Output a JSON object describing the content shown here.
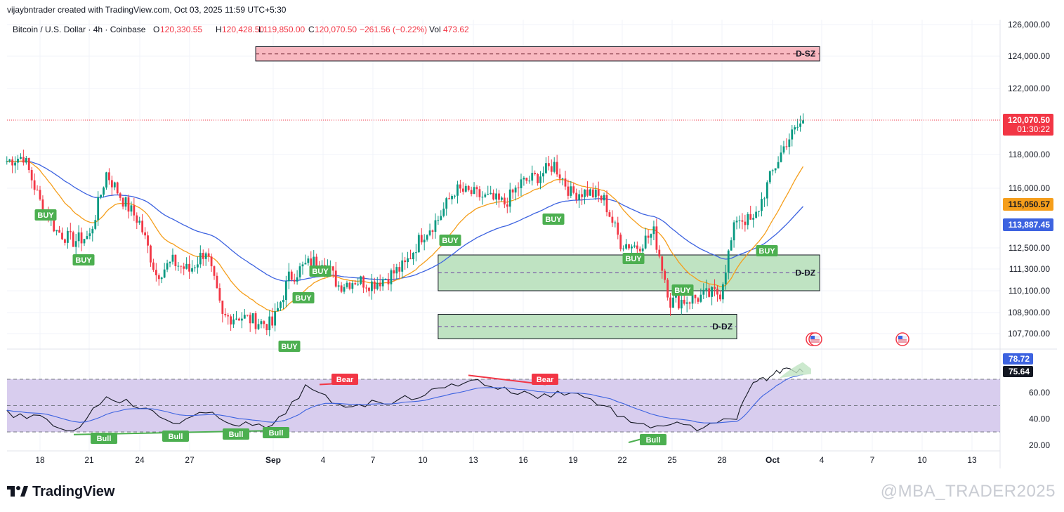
{
  "header": {
    "creator_line": "vijaybntrader created with TradingView.com, Oct 03, 2025 11:59 UTC+5:30"
  },
  "legend": {
    "symbol": "Bitcoin / U.S. Dollar · 4h · Coinbase",
    "open_label": "O",
    "open": "120,330.55",
    "high_label": "H",
    "high": "120,428.50",
    "low_label": "L",
    "low": "119,850.00",
    "close_label": "C",
    "close": "120,070.50",
    "change": "−261.56 (−0.22%)",
    "vol_label": "Vol",
    "vol": "473.62"
  },
  "colors": {
    "up": "#089981",
    "down": "#f23645",
    "ema_fast": "#f59e1b",
    "ema_slow": "#3d63e0",
    "supply_fill": "#f8b8c0",
    "demand_fill": "#bfe3c2",
    "rsi_band": "#d8cdee",
    "rsi_line": "#131722",
    "rsi_ma": "#3d63e0",
    "buy_tag": "#4caf50",
    "bear_tag": "#f23645"
  },
  "price_axis": {
    "ticks": [
      "126,000.00",
      "124,000.00",
      "122,000.00",
      "118,000.00",
      "116,000.00",
      "112,500.00",
      "111,300.00",
      "110,100.00",
      "108,900.00",
      "107,700.00"
    ],
    "last_price": "120,070.50",
    "countdown": "01:30:22",
    "ema_fast_value": "115,050.57",
    "ema_slow_value": "113,887.45"
  },
  "rsi_axis": {
    "ticks": [
      "60.00",
      "40.00",
      "20.00"
    ],
    "rsi_value": "75.64",
    "rsi_ma_value": "78.72"
  },
  "time_axis": [
    "18",
    "21",
    "24",
    "27",
    "Sep",
    "4",
    "7",
    "10",
    "13",
    "16",
    "19",
    "22",
    "25",
    "28",
    "Oct",
    "4",
    "7",
    "10",
    "13"
  ],
  "zones": [
    {
      "label": "D-SZ"
    },
    {
      "label": "D-DZ"
    },
    {
      "label": "D-DZ"
    }
  ],
  "signals": {
    "buy_label": "BUY",
    "bull_label": "Bull",
    "bear_label": "Bear"
  },
  "footer": {
    "brand": "TradingView",
    "watermark": "@MBA_TRADER2025"
  },
  "chart_data": {
    "type": "candlestick",
    "title": "Bitcoin / U.S. Dollar · 4h · Coinbase",
    "timeframe": "4h",
    "price_range": [
      106700,
      126600
    ],
    "x_labels": [
      "18",
      "21",
      "24",
      "27",
      "Sep",
      "4",
      "7",
      "10",
      "13",
      "16",
      "19",
      "22",
      "25",
      "28",
      "Oct",
      "4",
      "7",
      "10",
      "13"
    ],
    "close_path": [
      {
        "date": "Aug 16",
        "close": 117600
      },
      {
        "date": "Aug 17",
        "close": 117900
      },
      {
        "date": "Aug 18",
        "close": 115200
      },
      {
        "date": "Aug 19",
        "close": 113500
      },
      {
        "date": "Aug 20",
        "close": 112900
      },
      {
        "date": "Aug 21",
        "close": 113200
      },
      {
        "date": "Aug 22",
        "close": 116900
      },
      {
        "date": "Aug 23",
        "close": 115300
      },
      {
        "date": "Aug 24",
        "close": 114000
      },
      {
        "date": "Aug 25",
        "close": 111000
      },
      {
        "date": "Aug 26",
        "close": 111700
      },
      {
        "date": "Aug 27",
        "close": 111200
      },
      {
        "date": "Aug 28",
        "close": 112400
      },
      {
        "date": "Aug 29",
        "close": 108600
      },
      {
        "date": "Aug 30",
        "close": 108700
      },
      {
        "date": "Aug 31",
        "close": 108400
      },
      {
        "date": "Sep 1",
        "close": 108200
      },
      {
        "date": "Sep 2",
        "close": 110800
      },
      {
        "date": "Sep 3",
        "close": 111500
      },
      {
        "date": "Sep 4",
        "close": 111900
      },
      {
        "date": "Sep 5",
        "close": 110400
      },
      {
        "date": "Sep 6",
        "close": 110700
      },
      {
        "date": "Sep 7",
        "close": 110500
      },
      {
        "date": "Sep 8",
        "close": 110900
      },
      {
        "date": "Sep 9",
        "close": 111500
      },
      {
        "date": "Sep 10",
        "close": 113200
      },
      {
        "date": "Sep 11",
        "close": 114200
      },
      {
        "date": "Sep 12",
        "close": 115900
      },
      {
        "date": "Sep 13",
        "close": 115700
      },
      {
        "date": "Sep 14",
        "close": 115400
      },
      {
        "date": "Sep 15",
        "close": 115100
      },
      {
        "date": "Sep 16",
        "close": 116300
      },
      {
        "date": "Sep 17",
        "close": 116700
      },
      {
        "date": "Sep 18",
        "close": 117400
      },
      {
        "date": "Sep 19",
        "close": 115700
      },
      {
        "date": "Sep 20",
        "close": 115800
      },
      {
        "date": "Sep 21",
        "close": 115300
      },
      {
        "date": "Sep 22",
        "close": 112800
      },
      {
        "date": "Sep 23",
        "close": 112600
      },
      {
        "date": "Sep 24",
        "close": 113400
      },
      {
        "date": "Sep 25",
        "close": 109500
      },
      {
        "date": "Sep 26",
        "close": 109600
      },
      {
        "date": "Sep 27",
        "close": 109800
      },
      {
        "date": "Sep 28",
        "close": 110000
      },
      {
        "date": "Sep 29",
        "close": 114300
      },
      {
        "date": "Sep 30",
        "close": 114000
      },
      {
        "date": "Oct 1",
        "close": 116600
      },
      {
        "date": "Oct 2",
        "close": 118800
      },
      {
        "date": "Oct 3",
        "close": 120070
      }
    ],
    "series": [
      {
        "name": "EMA fast",
        "last": 115050.57
      },
      {
        "name": "EMA slow",
        "last": 113887.45
      }
    ],
    "zones": [
      {
        "label": "D-SZ",
        "from_date": "Aug 31",
        "to_date": "Oct 4",
        "low": 123700,
        "high": 124600
      },
      {
        "label": "D-DZ",
        "from_date": "Sep 11",
        "to_date": "Oct 4",
        "low": 110100,
        "high": 112100
      },
      {
        "label": "D-DZ",
        "from_date": "Sep 11",
        "to_date": "Sep 29",
        "low": 107400,
        "high": 108800
      }
    ],
    "rsi": {
      "range": [
        15,
        85
      ],
      "levels": [
        30,
        50,
        70
      ],
      "values": [
        {
          "date": "Aug 16",
          "v": 44
        },
        {
          "date": "Aug 18",
          "v": 40
        },
        {
          "date": "Aug 20",
          "v": 30
        },
        {
          "date": "Aug 22",
          "v": 58
        },
        {
          "date": "Aug 24",
          "v": 49
        },
        {
          "date": "Aug 26",
          "v": 37
        },
        {
          "date": "Aug 28",
          "v": 44
        },
        {
          "date": "Aug 30",
          "v": 36
        },
        {
          "date": "Sep 1",
          "v": 33
        },
        {
          "date": "Sep 3",
          "v": 64
        },
        {
          "date": "Sep 5",
          "v": 50
        },
        {
          "date": "Sep 7",
          "v": 52
        },
        {
          "date": "Sep 9",
          "v": 55
        },
        {
          "date": "Sep 11",
          "v": 62
        },
        {
          "date": "Sep 13",
          "v": 70
        },
        {
          "date": "Sep 15",
          "v": 62
        },
        {
          "date": "Sep 17",
          "v": 57
        },
        {
          "date": "Sep 19",
          "v": 61
        },
        {
          "date": "Sep 21",
          "v": 50
        },
        {
          "date": "Sep 23",
          "v": 34
        },
        {
          "date": "Sep 25",
          "v": 36
        },
        {
          "date": "Sep 27",
          "v": 32
        },
        {
          "date": "Sep 29",
          "v": 42
        },
        {
          "date": "Sep 30",
          "v": 66
        },
        {
          "date": "Oct 1",
          "v": 72
        },
        {
          "date": "Oct 2",
          "v": 80
        },
        {
          "date": "Oct 3",
          "v": 75.64
        }
      ],
      "last": 75.64,
      "ma_last": 78.72
    }
  }
}
